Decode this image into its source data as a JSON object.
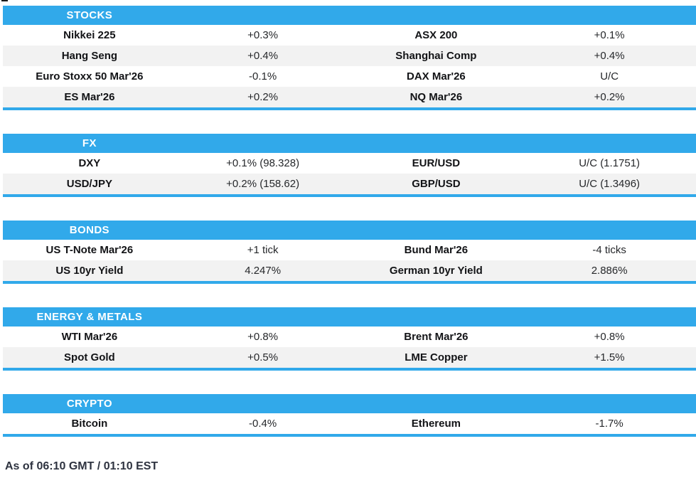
{
  "colors": {
    "accent": "#31a9ea",
    "row_alt": "#f2f2f2",
    "footer_text": "#2e3340"
  },
  "sections": [
    {
      "title": "STOCKS",
      "rows": [
        {
          "c0": "Nikkei 225",
          "c1": "+0.3%",
          "c2": "ASX 200",
          "c3": "+0.1%"
        },
        {
          "c0": "Hang Seng",
          "c1": "+0.4%",
          "c2": "Shanghai Comp",
          "c3": "+0.4%"
        },
        {
          "c0": "Euro Stoxx 50 Mar'26",
          "c1": "-0.1%",
          "c2": "DAX Mar'26",
          "c3": "U/C"
        },
        {
          "c0": "ES Mar'26",
          "c1": "+0.2%",
          "c2": "NQ Mar'26",
          "c3": "+0.2%"
        }
      ]
    },
    {
      "title": "FX",
      "rows": [
        {
          "c0": "DXY",
          "c1": "+0.1% (98.328)",
          "c2": "EUR/USD",
          "c3": "U/C (1.1751)"
        },
        {
          "c0": "USD/JPY",
          "c1": "+0.2% (158.62)",
          "c2": "GBP/USD",
          "c3": "U/C (1.3496)"
        }
      ]
    },
    {
      "title": "BONDS",
      "rows": [
        {
          "c0": "US T-Note Mar'26",
          "c1": "+1 tick",
          "c2": "Bund Mar'26",
          "c3": "-4 ticks"
        },
        {
          "c0": "US 10yr Yield",
          "c1": "4.247%",
          "c2": "German 10yr Yield",
          "c3": "2.886%"
        }
      ]
    },
    {
      "title": "ENERGY & METALS",
      "rows": [
        {
          "c0": "WTI Mar'26",
          "c1": "+0.8%",
          "c2": "Brent Mar'26",
          "c3": "+0.8%"
        },
        {
          "c0": "Spot Gold",
          "c1": "+0.5%",
          "c2": "LME Copper",
          "c3": "+1.5%"
        }
      ]
    },
    {
      "title": "CRYPTO",
      "rows": [
        {
          "c0": "Bitcoin",
          "c1": "-0.4%",
          "c2": "Ethereum",
          "c3": "-1.7%"
        }
      ]
    }
  ],
  "footer": {
    "as_of": "As of 06:10 GMT / 01:10 EST"
  }
}
